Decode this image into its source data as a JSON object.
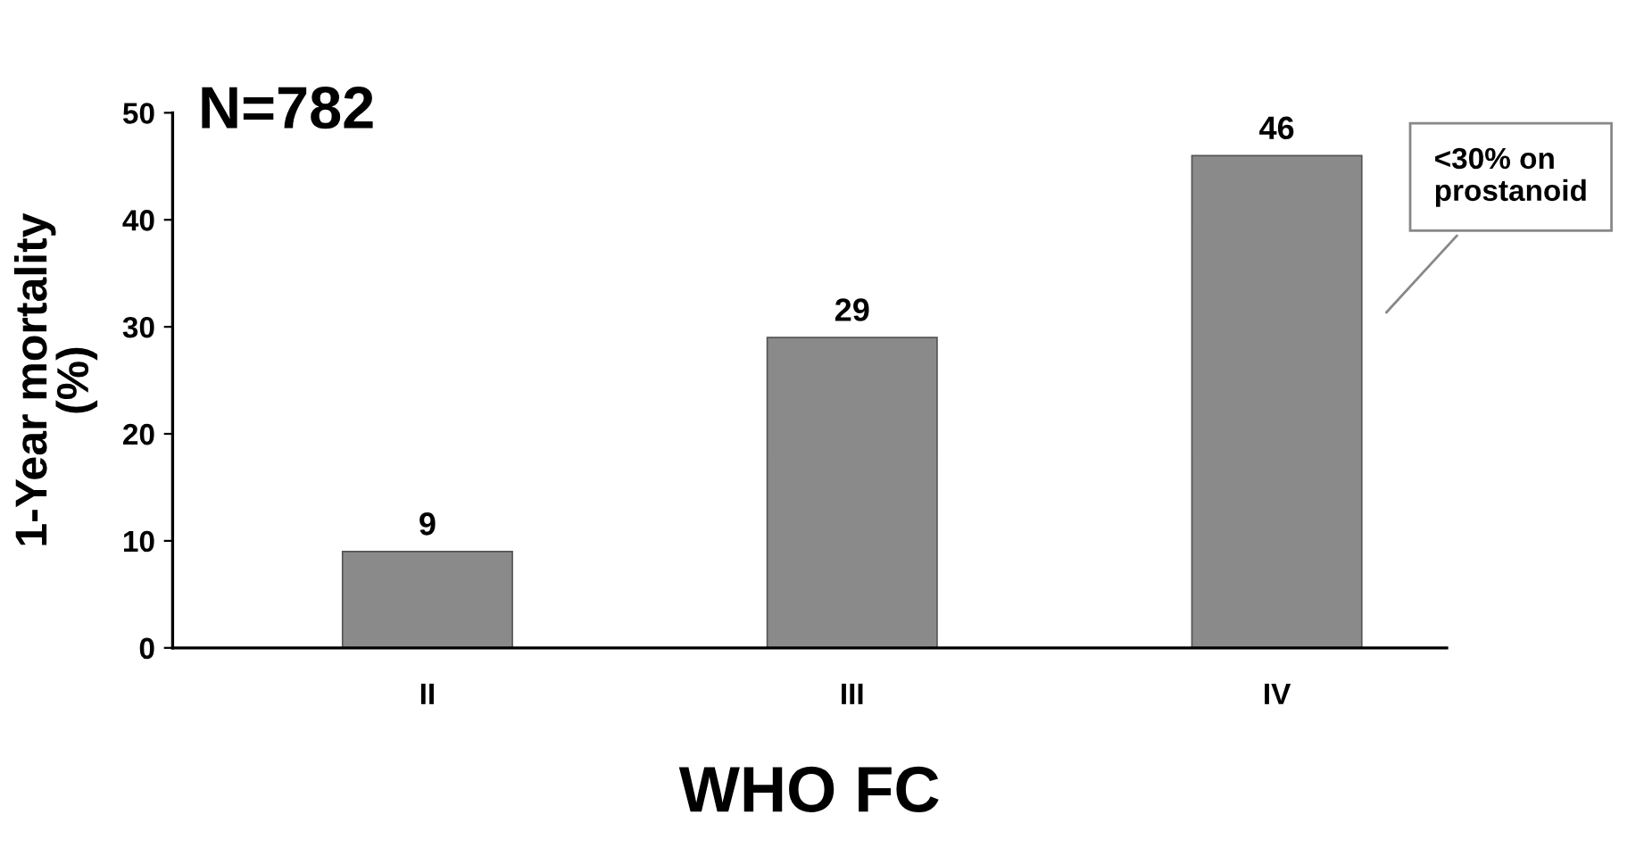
{
  "chart_data": {
    "type": "bar",
    "title": "N=782",
    "xlabel": "WHO FC",
    "ylabel": "1-Year mortality\n(%)",
    "categories": [
      "II",
      "III",
      "IV"
    ],
    "values": [
      9,
      29,
      46
    ],
    "color": "#8a8a8a",
    "ylim": [
      0,
      50
    ],
    "yticks": [
      0,
      10,
      20,
      30,
      40,
      50
    ],
    "grid": false,
    "data_labels": true,
    "annotations": [
      "<30% on\nprostanoid"
    ]
  }
}
